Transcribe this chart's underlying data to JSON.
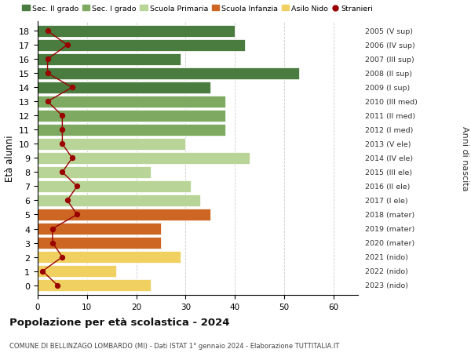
{
  "ages": [
    18,
    17,
    16,
    15,
    14,
    13,
    12,
    11,
    10,
    9,
    8,
    7,
    6,
    5,
    4,
    3,
    2,
    1,
    0
  ],
  "right_labels": [
    "2005 (V sup)",
    "2006 (IV sup)",
    "2007 (III sup)",
    "2008 (II sup)",
    "2009 (I sup)",
    "2010 (III med)",
    "2011 (II med)",
    "2012 (I med)",
    "2013 (V ele)",
    "2014 (IV ele)",
    "2015 (III ele)",
    "2016 (II ele)",
    "2017 (I ele)",
    "2018 (mater)",
    "2019 (mater)",
    "2020 (mater)",
    "2021 (nido)",
    "2022 (nido)",
    "2023 (nido)"
  ],
  "bar_values": [
    40,
    42,
    29,
    53,
    35,
    38,
    38,
    38,
    30,
    43,
    23,
    31,
    33,
    35,
    25,
    25,
    29,
    16,
    23
  ],
  "bar_colors": [
    "#4a7c3f",
    "#4a7c3f",
    "#4a7c3f",
    "#4a7c3f",
    "#4a7c3f",
    "#7daa60",
    "#7daa60",
    "#7daa60",
    "#b8d496",
    "#b8d496",
    "#b8d496",
    "#b8d496",
    "#b8d496",
    "#cc6622",
    "#cc6622",
    "#cc6622",
    "#f0d060",
    "#f0d060",
    "#f0d060"
  ],
  "stranieri_values": [
    2,
    6,
    2,
    2,
    7,
    2,
    5,
    5,
    5,
    7,
    5,
    8,
    6,
    8,
    3,
    3,
    5,
    1,
    4
  ],
  "stranieri_color": "#990000",
  "title": "Popolazione per età scolastica - 2024",
  "subtitle": "COMUNE DI BELLINZAGO LOMBARDO (MI) - Dati ISTAT 1° gennaio 2024 - Elaborazione TUTTITALIA.IT",
  "ylabel": "Età alunni",
  "right_ylabel": "Anni di nascita",
  "xlim": [
    0,
    65
  ],
  "xticks": [
    0,
    10,
    20,
    30,
    40,
    50,
    60
  ],
  "legend_items": [
    {
      "label": "Sec. II grado",
      "color": "#4a7c3f",
      "type": "patch"
    },
    {
      "label": "Sec. I grado",
      "color": "#7daa60",
      "type": "patch"
    },
    {
      "label": "Scuola Primaria",
      "color": "#b8d496",
      "type": "patch"
    },
    {
      "label": "Scuola Infanzia",
      "color": "#cc6622",
      "type": "patch"
    },
    {
      "label": "Asilo Nido",
      "color": "#f0d060",
      "type": "patch"
    },
    {
      "label": "Stranieri",
      "color": "#990000",
      "type": "dot"
    }
  ],
  "background_color": "#ffffff",
  "grid_color": "#cccccc",
  "bar_height": 0.82
}
